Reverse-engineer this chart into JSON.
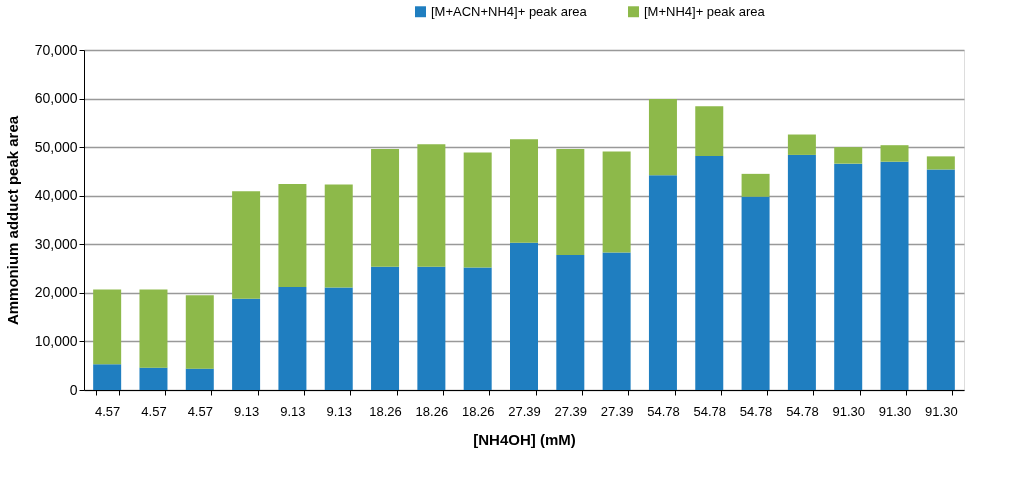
{
  "chart_data": {
    "type": "bar",
    "stacked": true,
    "xlabel": "[NH4OH] (mM)",
    "ylabel": "Ammonium adduct peak area",
    "categories": [
      "4.57",
      "4.57",
      "4.57",
      "9.13",
      "9.13",
      "9.13",
      "18.26",
      "18.26",
      "18.26",
      "27.39",
      "27.39",
      "27.39",
      "54.78",
      "54.78",
      "54.78",
      "54.78",
      "91.30",
      "91.30",
      "91.30"
    ],
    "series": [
      {
        "name": "[M+ACN+NH4]+ peak area",
        "color": "#1f7ec0",
        "values": [
          5300,
          4600,
          4400,
          18800,
          21200,
          21100,
          25400,
          25400,
          25200,
          30300,
          27800,
          28300,
          44200,
          48200,
          39800,
          48400,
          46600,
          47000,
          45400
        ]
      },
      {
        "name": "[M+NH4]+ peak area",
        "color": "#8db94a",
        "values": [
          15400,
          16100,
          15100,
          22100,
          21200,
          21200,
          24200,
          25200,
          23700,
          21300,
          21800,
          20800,
          15700,
          10200,
          4700,
          4200,
          3400,
          3400,
          2700
        ]
      }
    ],
    "ylim": [
      0,
      70000
    ],
    "yticks": [
      0,
      {
        "value": 10000,
        "label": "10,000"
      },
      {
        "value": 20000,
        "label": "20,000"
      },
      {
        "value": 30000,
        "label": "30,000"
      },
      {
        "value": 40000,
        "label": "40,000"
      },
      {
        "value": 50000,
        "label": "50,000"
      },
      {
        "value": 60000,
        "label": "60,000"
      },
      {
        "value": 70000,
        "label": "70,000"
      }
    ],
    "grid": "y",
    "legend": "top"
  }
}
